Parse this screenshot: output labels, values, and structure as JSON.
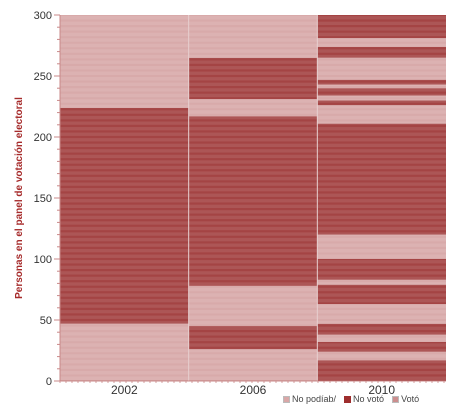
{
  "chart_data": {
    "type": "heatmap",
    "title": "",
    "ylabel": "Personas en el panel de votación electoral",
    "xlabel": "",
    "categories": [
      "2002",
      "2006",
      "2010"
    ],
    "ylim": [
      0,
      300
    ],
    "yticks": [
      "0",
      "50",
      "100",
      "150",
      "200",
      "250",
      "300"
    ],
    "legend": [
      {
        "label": "No podíab/",
        "color": "#d9a7a7"
      },
      {
        "label": "No votó",
        "color": "#9e2e2e"
      },
      {
        "label": "Votó",
        "color": "#cc8e8e"
      }
    ],
    "colors": {
      "dark": "#9a2f2f",
      "light": "#d4a1a1"
    },
    "columns": [
      {
        "year": "2002",
        "segments": [
          {
            "from": 0,
            "to": 47,
            "status": "light"
          },
          {
            "from": 47,
            "to": 224,
            "status": "dark"
          },
          {
            "from": 224,
            "to": 300,
            "status": "light"
          }
        ]
      },
      {
        "year": "2006",
        "segments": [
          {
            "from": 0,
            "to": 26,
            "status": "light"
          },
          {
            "from": 26,
            "to": 45,
            "status": "dark"
          },
          {
            "from": 45,
            "to": 78,
            "status": "light"
          },
          {
            "from": 78,
            "to": 217,
            "status": "dark"
          },
          {
            "from": 217,
            "to": 231,
            "status": "light"
          },
          {
            "from": 231,
            "to": 265,
            "status": "dark"
          },
          {
            "from": 265,
            "to": 300,
            "status": "light"
          }
        ]
      },
      {
        "year": "2010",
        "segments": [
          {
            "from": 0,
            "to": 17,
            "status": "dark"
          },
          {
            "from": 17,
            "to": 24,
            "status": "light"
          },
          {
            "from": 24,
            "to": 32,
            "status": "dark"
          },
          {
            "from": 32,
            "to": 38,
            "status": "light"
          },
          {
            "from": 38,
            "to": 47,
            "status": "dark"
          },
          {
            "from": 47,
            "to": 63,
            "status": "light"
          },
          {
            "from": 63,
            "to": 79,
            "status": "dark"
          },
          {
            "from": 79,
            "to": 83,
            "status": "light"
          },
          {
            "from": 83,
            "to": 100,
            "status": "dark"
          },
          {
            "from": 100,
            "to": 120,
            "status": "light"
          },
          {
            "from": 120,
            "to": 211,
            "status": "dark"
          },
          {
            "from": 211,
            "to": 226,
            "status": "light"
          },
          {
            "from": 226,
            "to": 230,
            "status": "dark"
          },
          {
            "from": 230,
            "to": 234,
            "status": "light"
          },
          {
            "from": 234,
            "to": 240,
            "status": "dark"
          },
          {
            "from": 240,
            "to": 243,
            "status": "light"
          },
          {
            "from": 243,
            "to": 247,
            "status": "dark"
          },
          {
            "from": 247,
            "to": 265,
            "status": "light"
          },
          {
            "from": 265,
            "to": 274,
            "status": "dark"
          },
          {
            "from": 274,
            "to": 281,
            "status": "light"
          },
          {
            "from": 281,
            "to": 300,
            "status": "dark"
          }
        ]
      }
    ]
  }
}
